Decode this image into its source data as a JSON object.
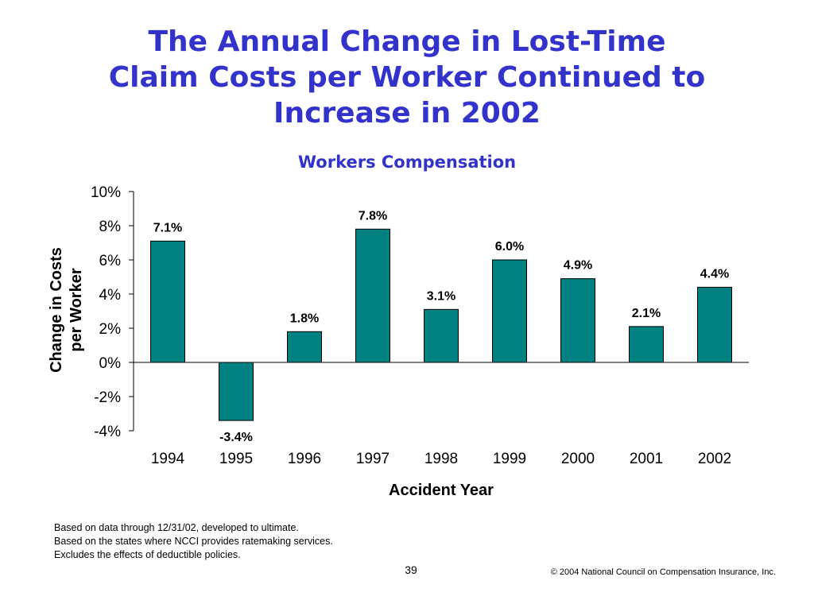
{
  "title_lines": [
    "The Annual Change in Lost-Time",
    "Claim Costs per Worker Continued to",
    "Increase in 2002"
  ],
  "subtitle": "Workers Compensation",
  "chart_data": {
    "type": "bar",
    "categories": [
      "1994",
      "1995",
      "1996",
      "1997",
      "1998",
      "1999",
      "2000",
      "2001",
      "2002"
    ],
    "values": [
      7.1,
      -3.4,
      1.8,
      7.8,
      3.1,
      6.0,
      4.9,
      2.1,
      4.4
    ],
    "data_labels": [
      "7.1%",
      "-3.4%",
      "1.8%",
      "7.8%",
      "3.1%",
      "6.0%",
      "4.9%",
      "2.1%",
      "4.4%"
    ],
    "ylabel_lines": [
      "Change in Costs",
      "per Worker"
    ],
    "xlabel": "Accident Year",
    "ylim": [
      -4,
      10
    ],
    "yticks": [
      -4,
      -2,
      0,
      2,
      4,
      6,
      8,
      10
    ],
    "ytick_labels": [
      "-4%",
      "-2%",
      "0%",
      "2%",
      "4%",
      "6%",
      "8%",
      "10%"
    ],
    "bar_color": "#008080",
    "grid": false,
    "legend": "none"
  },
  "notes": [
    "Based on data through 12/31/02, developed to ultimate.",
    "Based on the states where NCCI provides ratemaking services.",
    "Excludes the effects of deductible policies."
  ],
  "page_number": "39",
  "copyright": "© 2004 National Council on Compensation Insurance, Inc.",
  "colors": {
    "title": "#3333cc",
    "bar": "#008080"
  }
}
